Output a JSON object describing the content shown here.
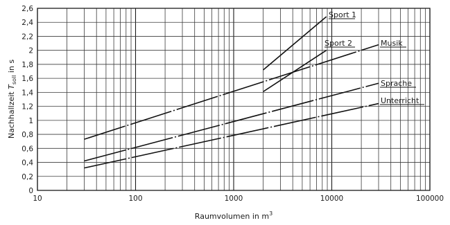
{
  "chart_data": {
    "type": "line",
    "title": "",
    "xlabel": "Raumvolumen in m",
    "xlabel_superscript": "3",
    "ylabel_prefix": "Nachhallzeit ",
    "ylabel_symbol": "T",
    "ylabel_subscript": "soll",
    "ylabel_suffix": " in s",
    "x_scale": "log",
    "xlim": [
      10,
      100000
    ],
    "ylim": [
      0,
      2.6
    ],
    "grid": true,
    "x_ticks": [
      10,
      100,
      1000,
      10000,
      100000
    ],
    "x_tick_labels": [
      "10",
      "100",
      "1000",
      "10000",
      "100000"
    ],
    "y_ticks": [
      0,
      0.2,
      0.4,
      0.6,
      0.8,
      1,
      1.2,
      1.4,
      1.6,
      1.8,
      2,
      2.2,
      2.4,
      2.6
    ],
    "y_tick_labels": [
      "0",
      "0,2",
      "0,4",
      "0,6",
      "0,8",
      "1",
      "1,2",
      "1,4",
      "1,6",
      "1,8",
      "2",
      "2,2",
      "2,4",
      "2,6"
    ],
    "series": [
      {
        "name": "Sport 1",
        "style": "solid",
        "x": [
          2000,
          8800
        ],
        "y": [
          1.72,
          2.48
        ]
      },
      {
        "name": "Sport 2",
        "style": "solid",
        "x": [
          2000,
          8800
        ],
        "y": [
          1.41,
          2.0
        ]
      },
      {
        "name": "Musik",
        "style": "dashdot",
        "x": [
          30,
          30000
        ],
        "y": [
          0.73,
          2.08
        ]
      },
      {
        "name": "Sprache",
        "style": "dashdot",
        "x": [
          30,
          30000
        ],
        "y": [
          0.42,
          1.53
        ]
      },
      {
        "name": "Unterricht",
        "style": "dashdot",
        "x": [
          30,
          30000
        ],
        "y": [
          0.32,
          1.24
        ]
      }
    ],
    "series_labels": [
      "Sport 1",
      "Sport 2",
      "Musik",
      "Sprache",
      "Unterricht"
    ]
  }
}
